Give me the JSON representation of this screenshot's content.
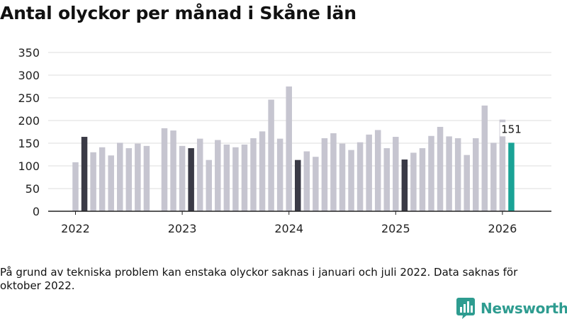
{
  "title": "Antal olyckor per månad i Skåne län",
  "footnote": "På grund av tekniska problem kan enstaka olyckor saknas i januari och juli 2022. Data saknas för oktober 2022.",
  "brand": {
    "name": "Newsworthy",
    "icon": "chart-logo-icon"
  },
  "colors": {
    "bar": "#c6c5d0",
    "january": "#3a3a46",
    "latest": "#1aa396",
    "grid": "#dcdcdc",
    "axis": "#222222"
  },
  "chart_data": {
    "type": "bar",
    "ylim": [
      0,
      350
    ],
    "yticks": [
      0,
      50,
      100,
      150,
      200,
      250,
      300,
      350
    ],
    "xticks": [
      "2022",
      "2023",
      "2024",
      "2025",
      "2026"
    ],
    "grid": true,
    "series": [
      {
        "categories": [
          "2022-01",
          "2022-02",
          "2022-03",
          "2022-04",
          "2022-05",
          "2022-06",
          "2022-07",
          "2022-08",
          "2022-09",
          "2022-10",
          "2022-11",
          "2022-12",
          "2023-01",
          "2023-02",
          "2023-03",
          "2023-04",
          "2023-05",
          "2023-06",
          "2023-07",
          "2023-08",
          "2023-09",
          "2023-10",
          "2023-11",
          "2023-12",
          "2024-01",
          "2024-02",
          "2024-03",
          "2024-04",
          "2024-05",
          "2024-06",
          "2024-07",
          "2024-08",
          "2024-09",
          "2024-10",
          "2024-11",
          "2024-12",
          "2025-01",
          "2025-02",
          "2025-03",
          "2025-04",
          "2025-05",
          "2025-06",
          "2025-07",
          "2025-08",
          "2025-09",
          "2025-10",
          "2025-11",
          "2025-12",
          "2026-01",
          "2026-02"
        ],
        "values": [
          108,
          164,
          130,
          141,
          123,
          151,
          139,
          149,
          144,
          null,
          183,
          178,
          144,
          139,
          160,
          113,
          157,
          147,
          141,
          147,
          161,
          176,
          246,
          160,
          275,
          113,
          132,
          120,
          161,
          172,
          149,
          135,
          152,
          169,
          179,
          139,
          164,
          114,
          129,
          139,
          166,
          186,
          165,
          161,
          124,
          161,
          233,
          151,
          202,
          151
        ]
      }
    ],
    "annotation": {
      "category": "2026-02",
      "label": "151"
    }
  }
}
